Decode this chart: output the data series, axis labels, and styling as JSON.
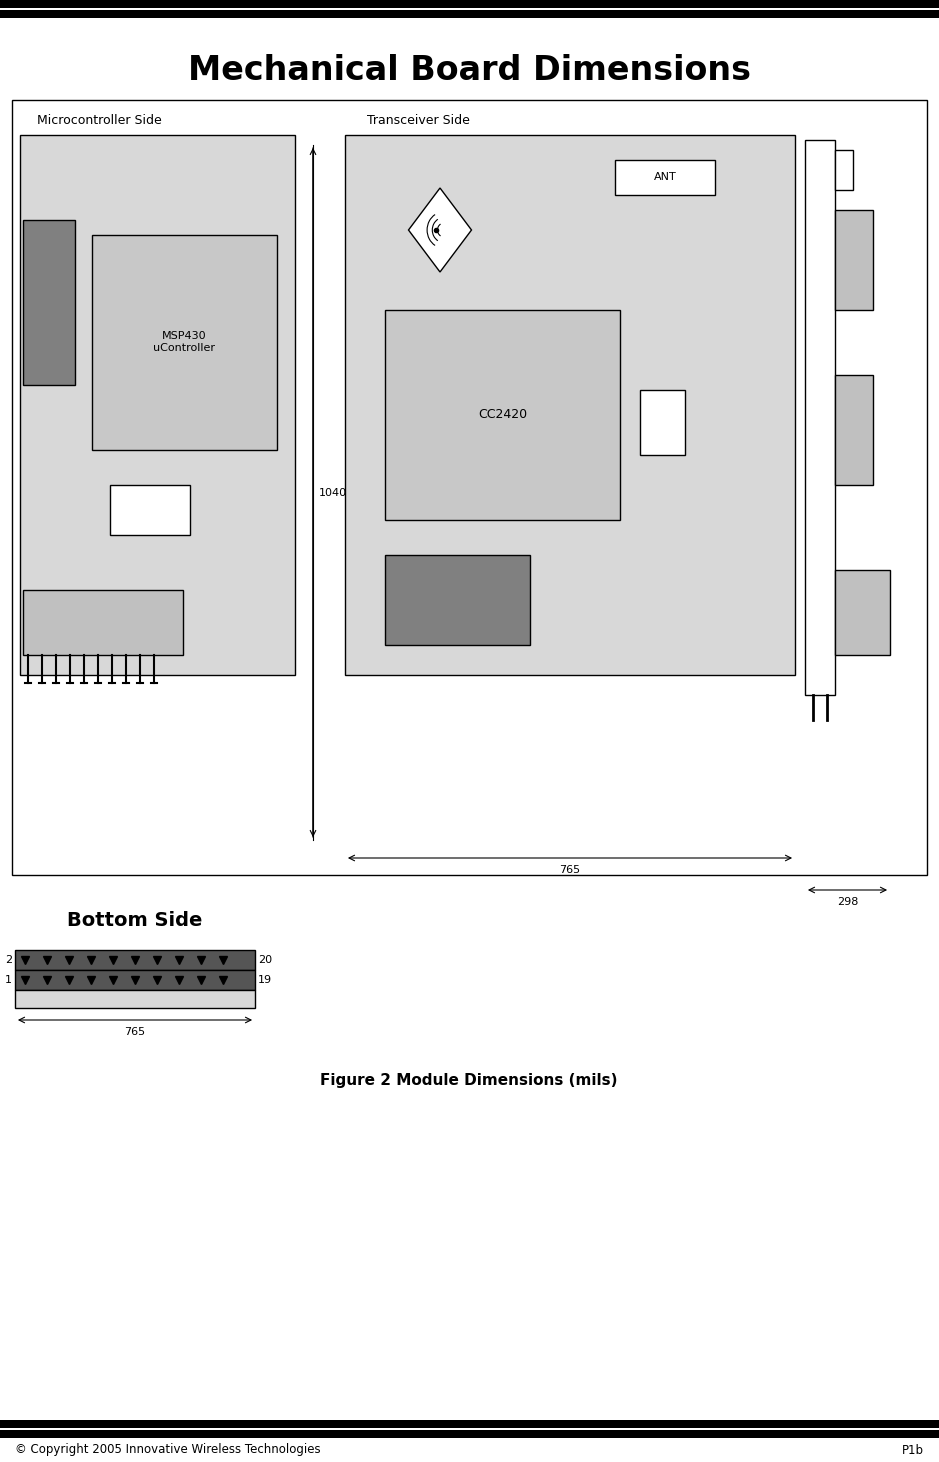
{
  "title": "Mechanical Board Dimensions",
  "figure_caption": "Figure 2 Module Dimensions (mils)",
  "copyright": "© Copyright 2005 Innovative Wireless Technologies",
  "page": "P1b",
  "bg_color": "#ffffff",
  "light_gray": "#d8d8d8",
  "medium_gray": "#c0c0c0",
  "dark_gray": "#808080",
  "chip_gray": "#c8c8c8",
  "dim_label_1040": "1040",
  "dim_label_765": "765",
  "dim_label_298": "298",
  "label_mc_side": "Microcontroller Side",
  "label_tx_side": "Transceiver Side",
  "label_bottom": "Bottom Side",
  "label_msp430": "MSP430\nuController",
  "label_cc2420": "CC2420",
  "label_ant": "ANT"
}
